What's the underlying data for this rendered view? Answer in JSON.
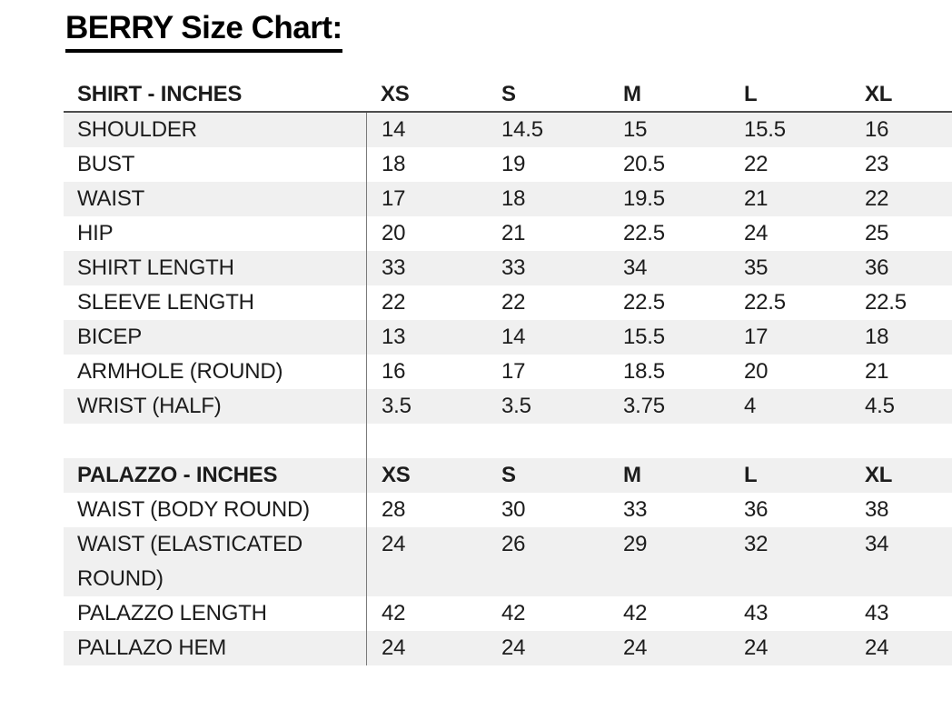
{
  "title": "BERRY Size Chart:",
  "chart_data": {
    "type": "table",
    "title": "BERRY Size Chart:",
    "size_columns": [
      "XS",
      "S",
      "M",
      "L",
      "XL"
    ],
    "sections": [
      {
        "header": "SHIRT - INCHES",
        "rows": [
          {
            "label": "SHOULDER",
            "values": [
              "14",
              "14.5",
              "15",
              "15.5",
              "16"
            ]
          },
          {
            "label": "BUST",
            "values": [
              "18",
              "19",
              "20.5",
              "22",
              "23"
            ]
          },
          {
            "label": "WAIST",
            "values": [
              "17",
              "18",
              "19.5",
              "21",
              "22"
            ]
          },
          {
            "label": "HIP",
            "values": [
              "20",
              "21",
              "22.5",
              "24",
              "25"
            ]
          },
          {
            "label": "SHIRT LENGTH",
            "values": [
              "33",
              "33",
              "34",
              "35",
              "36"
            ]
          },
          {
            "label": "SLEEVE LENGTH",
            "values": [
              "22",
              "22",
              "22.5",
              "22.5",
              "22.5"
            ]
          },
          {
            "label": "BICEP",
            "values": [
              "13",
              "14",
              "15.5",
              "17",
              "18"
            ]
          },
          {
            "label": "ARMHOLE (ROUND)",
            "values": [
              "16",
              "17",
              "18.5",
              "20",
              "21"
            ]
          },
          {
            "label": "WRIST (HALF)",
            "values": [
              "3.5",
              "3.5",
              "3.75",
              "4",
              "4.5"
            ]
          }
        ]
      },
      {
        "header": "PALAZZO - INCHES",
        "rows": [
          {
            "label": "WAIST (BODY ROUND)",
            "values": [
              "28",
              "30",
              "33",
              "36",
              "38"
            ]
          },
          {
            "label": "WAIST (ELASTICATED ROUND)",
            "values": [
              "24",
              "26",
              "29",
              "32",
              "34"
            ]
          },
          {
            "label": "PALAZZO LENGTH",
            "values": [
              "42",
              "42",
              "42",
              "43",
              "43"
            ]
          },
          {
            "label": "PALLAZO HEM",
            "values": [
              "24",
              "24",
              "24",
              "24",
              "24"
            ]
          }
        ]
      }
    ]
  },
  "colors": {
    "stripe": "#f0f0f0",
    "header_rule": "#4d4d4d",
    "column_divider": "#7a7a7a",
    "text": "#1c1c1c",
    "title_text": "#000000"
  }
}
